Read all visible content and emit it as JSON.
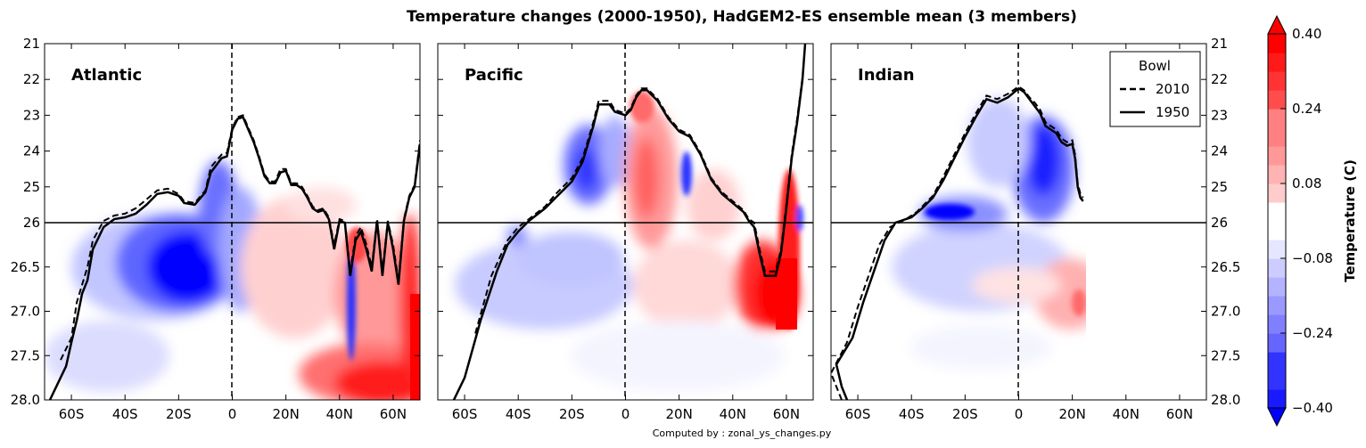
{
  "title": "Temperature changes (2000-1950), HadGEM2-ES ensemble mean (3 members)",
  "footer": "Computed by : zonal_ys_changes.py",
  "chart_data": {
    "type": "heatmap",
    "title": "Temperature changes (2000-1950), HadGEM2-ES ensemble mean (3 members)",
    "xlabel": "",
    "ylabel": "",
    "xlim": [
      -70,
      70
    ],
    "x_ticks": [
      "60S",
      "40S",
      "20S",
      "0",
      "20N",
      "40N",
      "60N"
    ],
    "x_tick_values": [
      -60,
      -40,
      -20,
      0,
      20,
      40,
      60
    ],
    "y_ticks": [
      "21",
      "22",
      "23",
      "24",
      "25",
      "26",
      "26.5",
      "27.0",
      "27.5",
      "28.0"
    ],
    "y_tick_values": [
      21,
      22,
      23,
      24,
      25,
      26,
      26.5,
      27.0,
      27.5,
      28.0
    ],
    "y_note": "density axis inverted; upper part (21-26) and lower part (26-28) use different vertical scales",
    "zonal_line": 26,
    "legend": {
      "title": "Bowl",
      "position": "top-right (Indian panel)",
      "entries": [
        {
          "label": "2010",
          "style": "dashed"
        },
        {
          "label": "1950",
          "style": "solid"
        }
      ]
    },
    "colorbar": {
      "label": "Temperature (C)",
      "range": [
        -0.4,
        0.4
      ],
      "tick_labels": [
        "0.40",
        "0.24",
        "0.08",
        "−0.08",
        "−0.24",
        "−0.40"
      ],
      "tick_values": [
        0.4,
        0.24,
        0.08,
        -0.08,
        -0.24,
        -0.4
      ],
      "levels": [
        -0.4,
        -0.36,
        -0.32,
        -0.28,
        -0.24,
        -0.2,
        -0.16,
        -0.12,
        -0.08,
        -0.04,
        0.04,
        0.08,
        0.12,
        0.16,
        0.2,
        0.24,
        0.28,
        0.32,
        0.36,
        0.4
      ],
      "extend": "both"
    },
    "panels": [
      {
        "name": "Atlantic",
        "x_extent": [
          -66,
          70
        ],
        "bowl_1950": [
          [
            -68,
            28.0
          ],
          [
            -62,
            27.62
          ],
          [
            -60,
            27.35
          ],
          [
            -58,
            27.1
          ],
          [
            -56,
            26.8
          ],
          [
            -54,
            26.65
          ],
          [
            -52,
            26.3
          ],
          [
            -48,
            26.05
          ],
          [
            -44,
            25.9
          ],
          [
            -40,
            25.85
          ],
          [
            -36,
            25.75
          ],
          [
            -32,
            25.5
          ],
          [
            -28,
            25.2
          ],
          [
            -24,
            25.15
          ],
          [
            -20,
            25.25
          ],
          [
            -18,
            25.45
          ],
          [
            -14,
            25.5
          ],
          [
            -10,
            25.15
          ],
          [
            -8,
            24.6
          ],
          [
            -4,
            24.2
          ],
          [
            -2,
            24.15
          ],
          [
            0,
            23.4
          ],
          [
            2,
            23.1
          ],
          [
            4,
            23.05
          ],
          [
            6,
            23.4
          ],
          [
            8,
            23.75
          ],
          [
            10,
            24.2
          ],
          [
            12,
            24.7
          ],
          [
            14,
            24.9
          ],
          [
            16,
            24.9
          ],
          [
            18,
            24.6
          ],
          [
            20,
            24.55
          ],
          [
            22,
            24.95
          ],
          [
            24,
            24.95
          ],
          [
            26,
            25.05
          ],
          [
            28,
            25.3
          ],
          [
            30,
            25.6
          ],
          [
            32,
            25.7
          ],
          [
            34,
            25.65
          ],
          [
            36,
            25.9
          ],
          [
            38,
            26.3
          ],
          [
            40,
            25.95
          ],
          [
            42,
            26.0
          ],
          [
            44,
            26.6
          ],
          [
            46,
            26.2
          ],
          [
            48,
            26.1
          ],
          [
            50,
            26.3
          ],
          [
            52,
            26.55
          ],
          [
            54,
            25.95
          ],
          [
            56,
            26.6
          ],
          [
            58,
            26.0
          ],
          [
            60,
            26.3
          ],
          [
            62,
            26.7
          ],
          [
            64,
            25.95
          ],
          [
            66,
            25.3
          ],
          [
            68,
            25.0
          ],
          [
            70,
            23.8
          ]
        ],
        "bowl_2010": [
          [
            -64,
            27.55
          ],
          [
            -60,
            27.3
          ],
          [
            -58,
            26.9
          ],
          [
            -54,
            26.5
          ],
          [
            -52,
            26.2
          ],
          [
            -48,
            25.95
          ],
          [
            -44,
            25.8
          ],
          [
            -40,
            25.75
          ],
          [
            -36,
            25.6
          ],
          [
            -32,
            25.35
          ],
          [
            -28,
            25.1
          ],
          [
            -24,
            25.05
          ],
          [
            -20,
            25.2
          ],
          [
            -18,
            25.4
          ],
          [
            -14,
            25.45
          ],
          [
            -10,
            25.1
          ],
          [
            -8,
            24.45
          ],
          [
            -4,
            24.1
          ],
          [
            -2,
            24.05
          ],
          [
            0,
            23.35
          ],
          [
            2,
            23.05
          ],
          [
            4,
            23.0
          ],
          [
            6,
            23.35
          ],
          [
            8,
            23.7
          ],
          [
            10,
            24.15
          ],
          [
            12,
            24.65
          ],
          [
            14,
            24.85
          ],
          [
            16,
            24.85
          ],
          [
            18,
            24.5
          ],
          [
            20,
            24.5
          ],
          [
            22,
            24.9
          ],
          [
            24,
            24.9
          ],
          [
            26,
            25.0
          ],
          [
            28,
            25.25
          ],
          [
            30,
            25.55
          ],
          [
            32,
            25.65
          ],
          [
            34,
            25.6
          ],
          [
            36,
            25.85
          ],
          [
            38,
            26.25
          ],
          [
            40,
            25.9
          ],
          [
            42,
            25.95
          ],
          [
            44,
            26.55
          ],
          [
            46,
            26.15
          ],
          [
            48,
            26.05
          ],
          [
            50,
            26.25
          ],
          [
            52,
            26.5
          ],
          [
            54,
            25.9
          ],
          [
            56,
            26.55
          ],
          [
            58,
            25.95
          ],
          [
            60,
            26.25
          ],
          [
            62,
            26.65
          ],
          [
            64,
            25.9
          ],
          [
            66,
            25.25
          ],
          [
            68,
            24.95
          ],
          [
            70,
            23.7
          ]
        ]
      },
      {
        "name": "Pacific",
        "x_extent": [
          -66,
          70
        ],
        "bowl_1950": [
          [
            -64,
            28.0
          ],
          [
            -60,
            27.75
          ],
          [
            -54,
            27.1
          ],
          [
            -48,
            26.55
          ],
          [
            -44,
            26.25
          ],
          [
            -40,
            26.1
          ],
          [
            -36,
            25.95
          ],
          [
            -30,
            25.6
          ],
          [
            -26,
            25.3
          ],
          [
            -20,
            24.85
          ],
          [
            -16,
            24.3
          ],
          [
            -12,
            23.3
          ],
          [
            -10,
            22.7
          ],
          [
            -8,
            22.7
          ],
          [
            -6,
            22.7
          ],
          [
            -4,
            22.9
          ],
          [
            0,
            23.0
          ],
          [
            2,
            22.85
          ],
          [
            4,
            22.5
          ],
          [
            6,
            22.3
          ],
          [
            8,
            22.3
          ],
          [
            12,
            22.6
          ],
          [
            16,
            23.1
          ],
          [
            20,
            23.45
          ],
          [
            24,
            23.6
          ],
          [
            28,
            24.1
          ],
          [
            32,
            24.8
          ],
          [
            36,
            25.2
          ],
          [
            40,
            25.45
          ],
          [
            44,
            25.7
          ],
          [
            46,
            25.95
          ],
          [
            48,
            26.05
          ],
          [
            50,
            26.35
          ],
          [
            52,
            26.6
          ],
          [
            56,
            26.6
          ],
          [
            58,
            26.35
          ],
          [
            60,
            25.6
          ],
          [
            62,
            24.2
          ],
          [
            64,
            23.2
          ],
          [
            66,
            22.0
          ],
          [
            67,
            21.0
          ]
        ],
        "bowl_2010": [
          [
            -56,
            27.25
          ],
          [
            -50,
            26.6
          ],
          [
            -44,
            26.2
          ],
          [
            -40,
            26.05
          ],
          [
            -36,
            25.9
          ],
          [
            -30,
            25.55
          ],
          [
            -26,
            25.2
          ],
          [
            -20,
            24.75
          ],
          [
            -16,
            24.2
          ],
          [
            -12,
            23.2
          ],
          [
            -10,
            22.6
          ],
          [
            -8,
            22.6
          ],
          [
            -6,
            22.6
          ],
          [
            -4,
            22.85
          ],
          [
            0,
            22.95
          ],
          [
            2,
            22.8
          ],
          [
            4,
            22.45
          ],
          [
            6,
            22.25
          ],
          [
            8,
            22.25
          ],
          [
            12,
            22.55
          ],
          [
            16,
            23.05
          ],
          [
            20,
            23.4
          ],
          [
            24,
            23.55
          ],
          [
            28,
            24.05
          ],
          [
            32,
            24.75
          ],
          [
            36,
            25.15
          ],
          [
            40,
            25.4
          ],
          [
            44,
            25.65
          ],
          [
            46,
            25.9
          ],
          [
            48,
            26.0
          ],
          [
            50,
            26.3
          ],
          [
            52,
            26.55
          ],
          [
            56,
            26.55
          ],
          [
            58,
            26.3
          ],
          [
            60,
            25.5
          ],
          [
            62,
            24.1
          ],
          [
            64,
            23.1
          ],
          [
            66,
            21.95
          ]
        ]
      },
      {
        "name": "Indian",
        "x_extent": [
          -70,
          25
        ],
        "bowl_1950": [
          [
            -64,
            28.0
          ],
          [
            -66,
            27.85
          ],
          [
            -68,
            27.6
          ],
          [
            -62,
            27.3
          ],
          [
            -58,
            26.9
          ],
          [
            -54,
            26.55
          ],
          [
            -50,
            26.2
          ],
          [
            -46,
            26.0
          ],
          [
            -40,
            25.85
          ],
          [
            -36,
            25.6
          ],
          [
            -32,
            25.3
          ],
          [
            -28,
            24.8
          ],
          [
            -24,
            24.2
          ],
          [
            -20,
            23.6
          ],
          [
            -16,
            23.05
          ],
          [
            -12,
            22.55
          ],
          [
            -8,
            22.65
          ],
          [
            -4,
            22.5
          ],
          [
            0,
            22.25
          ],
          [
            2,
            22.35
          ],
          [
            4,
            22.55
          ],
          [
            6,
            22.75
          ],
          [
            8,
            22.95
          ],
          [
            10,
            23.3
          ],
          [
            12,
            23.4
          ],
          [
            14,
            23.5
          ],
          [
            16,
            23.75
          ],
          [
            18,
            23.85
          ],
          [
            20,
            23.8
          ],
          [
            21,
            24.2
          ],
          [
            22,
            25.0
          ],
          [
            23,
            25.3
          ],
          [
            24,
            25.4
          ]
        ],
        "bowl_2010": [
          [
            -66,
            28.0
          ],
          [
            -70,
            27.7
          ],
          [
            -64,
            27.35
          ],
          [
            -60,
            26.95
          ],
          [
            -56,
            26.6
          ],
          [
            -52,
            26.25
          ],
          [
            -48,
            26.05
          ],
          [
            -42,
            25.9
          ],
          [
            -38,
            25.7
          ],
          [
            -32,
            25.25
          ],
          [
            -28,
            24.7
          ],
          [
            -24,
            24.1
          ],
          [
            -20,
            23.5
          ],
          [
            -16,
            22.95
          ],
          [
            -12,
            22.45
          ],
          [
            -8,
            22.55
          ],
          [
            -4,
            22.4
          ],
          [
            0,
            22.2
          ],
          [
            2,
            22.3
          ],
          [
            4,
            22.5
          ],
          [
            6,
            22.65
          ],
          [
            8,
            22.85
          ],
          [
            10,
            23.2
          ],
          [
            12,
            23.3
          ],
          [
            14,
            23.4
          ],
          [
            16,
            23.65
          ],
          [
            18,
            23.75
          ],
          [
            20,
            23.7
          ],
          [
            21,
            24.1
          ],
          [
            22,
            24.9
          ],
          [
            23,
            25.2
          ],
          [
            24,
            25.3
          ]
        ]
      }
    ]
  }
}
